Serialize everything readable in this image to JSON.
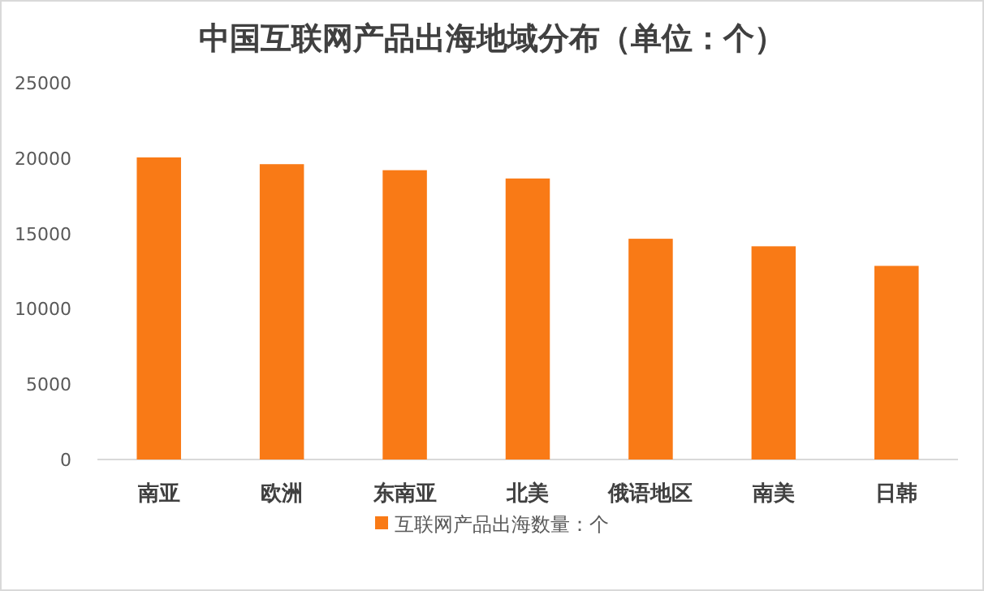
{
  "chart_data": {
    "type": "bar",
    "title": "中国互联网产品出海地域分布（单位：个）",
    "categories": [
      "南亚",
      "欧洲",
      "东南亚",
      "北美",
      "俄语地区",
      "南美",
      "日韩"
    ],
    "series": [
      {
        "name": "互联网产品出海数量：个",
        "color": "#f97a16",
        "values": [
          20050,
          19600,
          19200,
          18650,
          14650,
          14150,
          12850
        ]
      }
    ],
    "ylim": [
      0,
      25000
    ],
    "yticks": [
      0,
      5000,
      10000,
      15000,
      20000,
      25000
    ],
    "legend": "bottom"
  }
}
